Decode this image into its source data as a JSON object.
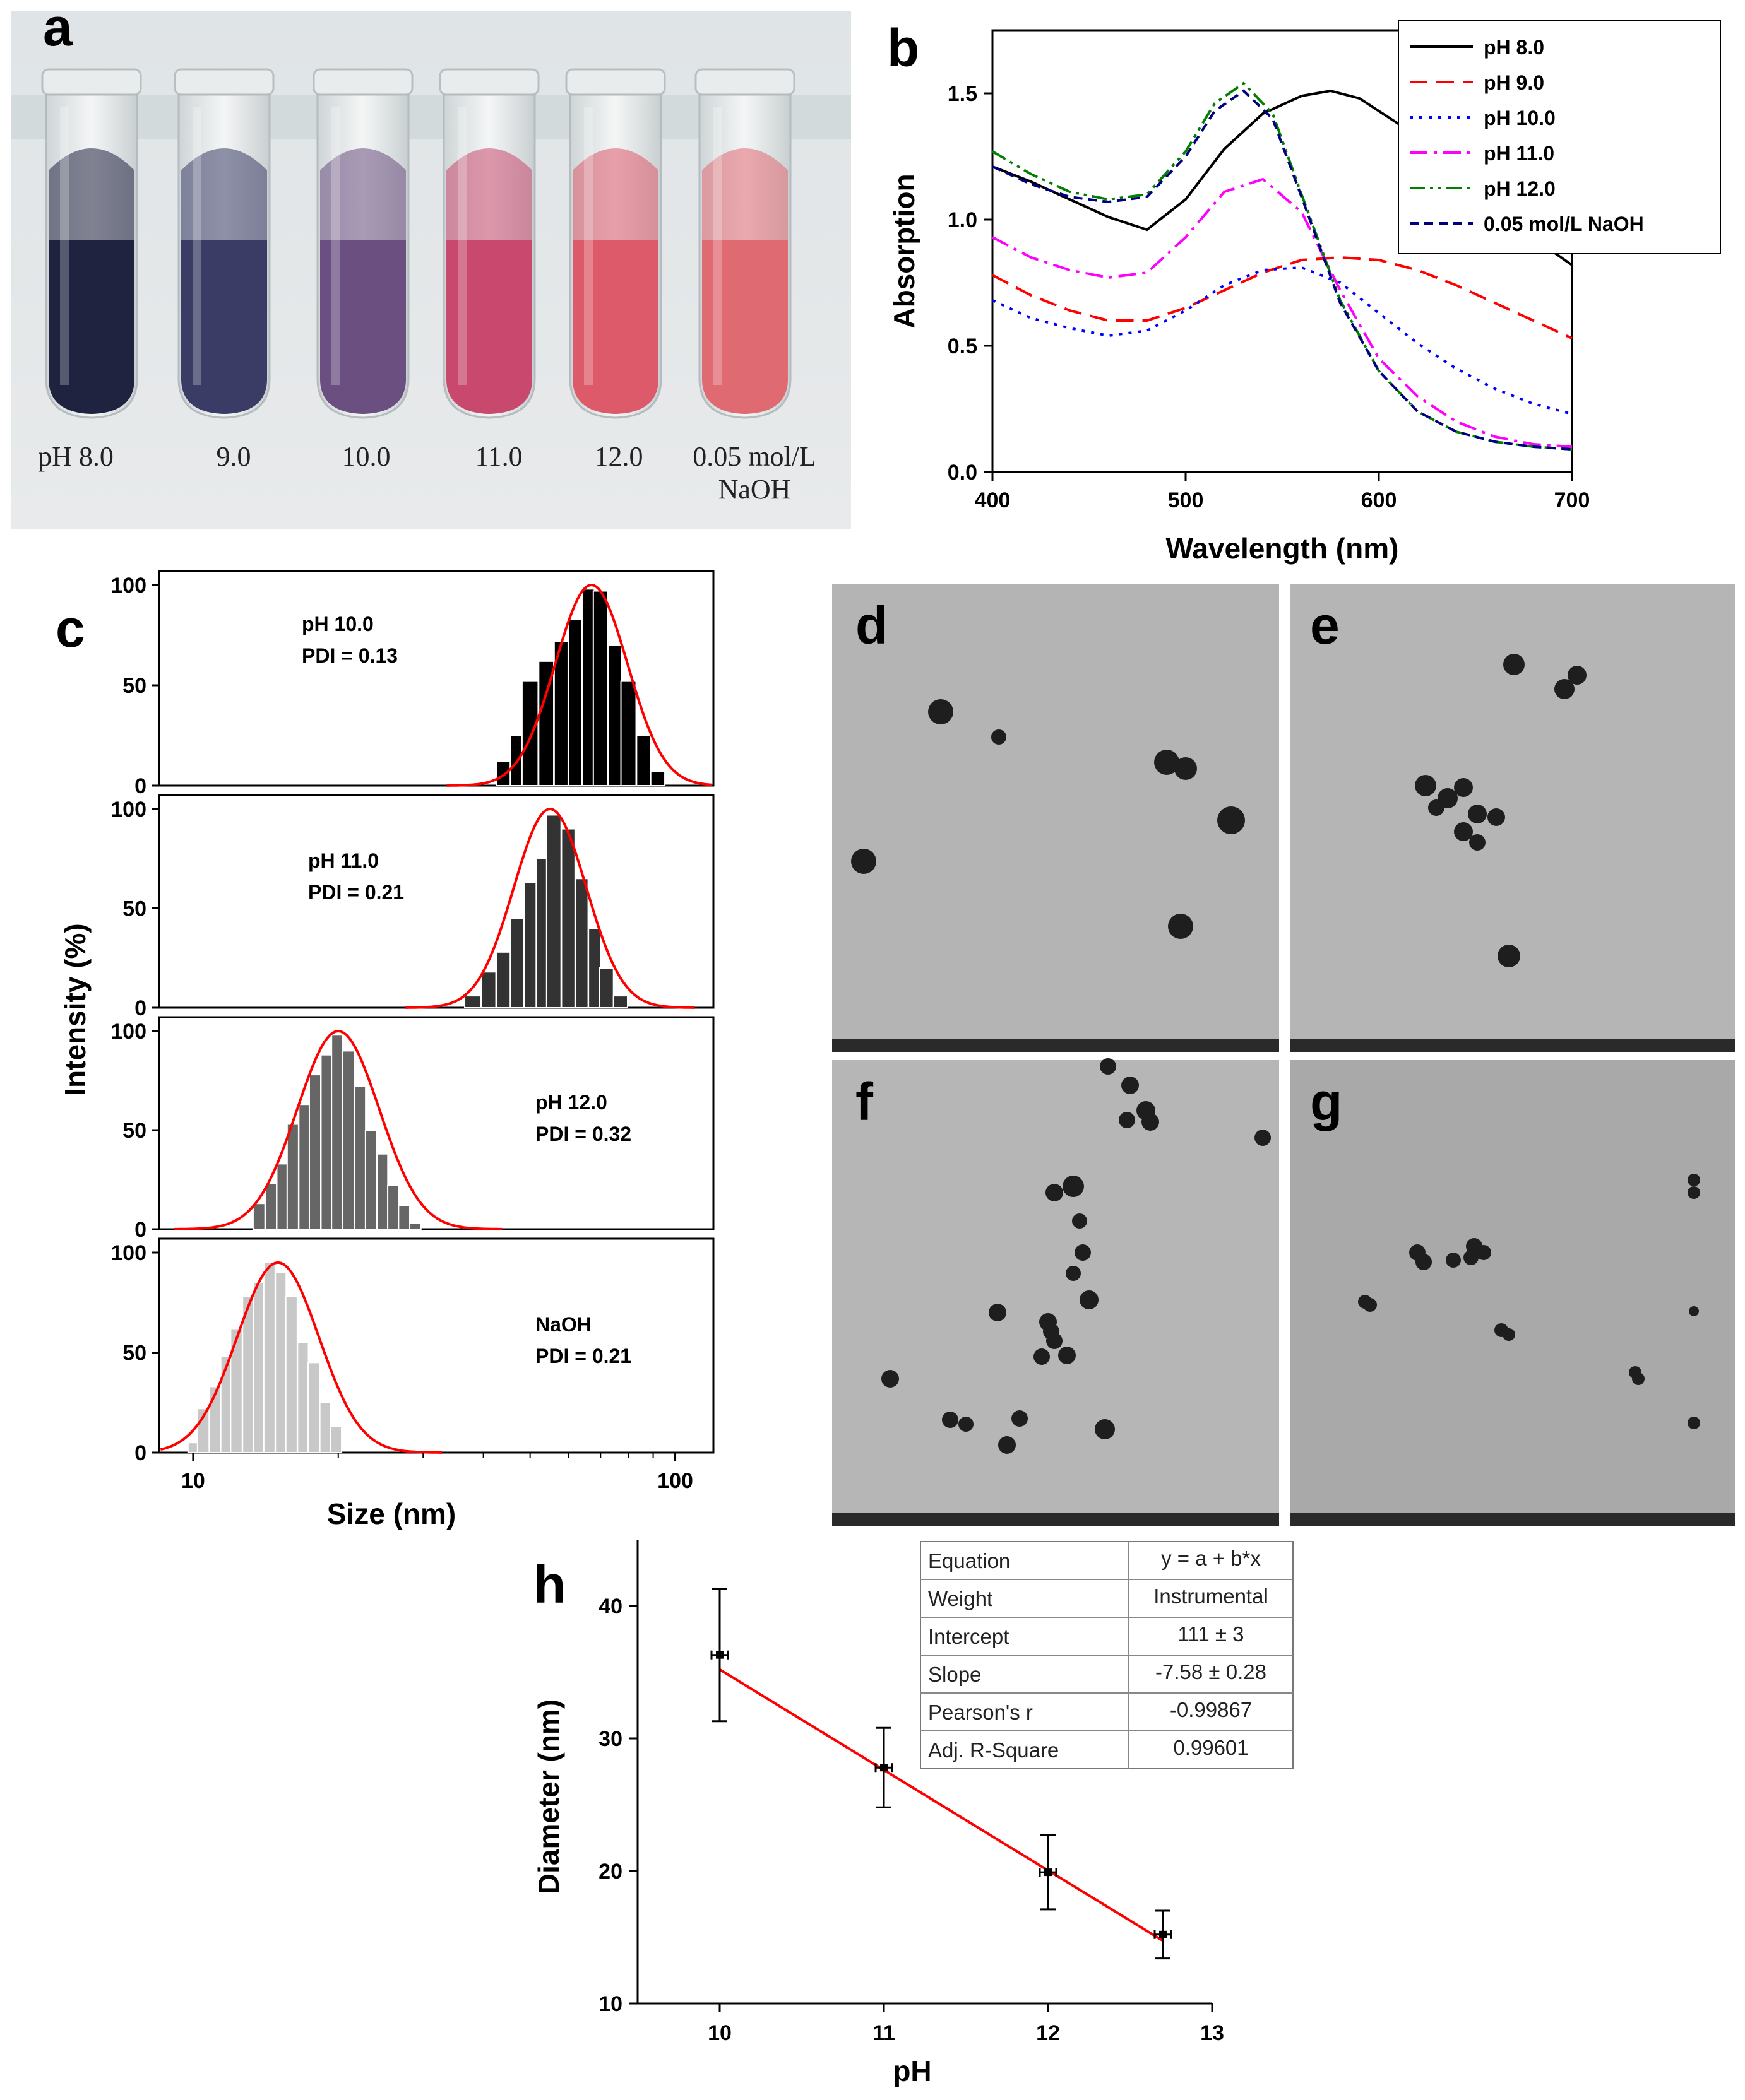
{
  "panels": {
    "a": "a",
    "b": "b",
    "c": "c",
    "d": "d",
    "e": "e",
    "f": "f",
    "g": "g",
    "h": "h"
  },
  "tubes": {
    "labels": [
      "pH   8.0",
      "9.0",
      "10.0",
      "11.0",
      "12.0",
      "0.05 mol/L"
    ],
    "label_line2": "NaOH",
    "colors": [
      "#20233f",
      "#3a3c66",
      "#6b4f80",
      "#c9486e",
      "#dd5a6a",
      "#e06a72"
    ]
  },
  "chart_data": [
    {
      "panel": "b",
      "type": "line",
      "xlabel": "Wavelength (nm)",
      "ylabel": "Absorption",
      "xlim": [
        400,
        700
      ],
      "ylim": [
        0.0,
        1.75
      ],
      "xticks": [
        "400",
        "500",
        "600",
        "700"
      ],
      "yticks": [
        "0.0",
        "0.5",
        "1.0",
        "1.5"
      ],
      "legend_position": "top-right",
      "series": [
        {
          "name": "pH 8.0",
          "color": "#000000",
          "dash": "solid",
          "x": [
            400,
            420,
            440,
            460,
            480,
            500,
            520,
            540,
            560,
            575,
            590,
            610,
            630,
            650,
            670,
            700
          ],
          "y": [
            1.21,
            1.15,
            1.08,
            1.01,
            0.96,
            1.08,
            1.28,
            1.42,
            1.49,
            1.51,
            1.48,
            1.38,
            1.25,
            1.11,
            0.98,
            0.82
          ]
        },
        {
          "name": "pH 9.0",
          "color": "#ff0000",
          "dash": "dashed",
          "x": [
            400,
            420,
            440,
            460,
            480,
            500,
            520,
            540,
            560,
            580,
            600,
            620,
            640,
            660,
            680,
            700
          ],
          "y": [
            0.78,
            0.7,
            0.64,
            0.6,
            0.6,
            0.65,
            0.72,
            0.79,
            0.84,
            0.85,
            0.84,
            0.8,
            0.74,
            0.67,
            0.6,
            0.53
          ]
        },
        {
          "name": "pH 10.0",
          "color": "#0000ff",
          "dash": "dotted",
          "x": [
            400,
            420,
            440,
            460,
            480,
            500,
            520,
            540,
            560,
            580,
            600,
            620,
            640,
            660,
            680,
            700
          ],
          "y": [
            0.68,
            0.61,
            0.57,
            0.54,
            0.56,
            0.64,
            0.74,
            0.8,
            0.81,
            0.75,
            0.63,
            0.51,
            0.41,
            0.33,
            0.27,
            0.23
          ]
        },
        {
          "name": "pH 11.0",
          "color": "#ff00ff",
          "dash": "dashdot",
          "x": [
            400,
            420,
            440,
            460,
            480,
            500,
            520,
            540,
            560,
            580,
            600,
            620,
            640,
            660,
            680,
            700
          ],
          "y": [
            0.93,
            0.85,
            0.8,
            0.77,
            0.79,
            0.93,
            1.11,
            1.16,
            1.03,
            0.72,
            0.45,
            0.3,
            0.2,
            0.14,
            0.11,
            0.1
          ]
        },
        {
          "name": "pH 12.0",
          "color": "#008000",
          "dash": "dashdotdot",
          "x": [
            400,
            420,
            440,
            460,
            480,
            500,
            515,
            530,
            545,
            560,
            580,
            600,
            620,
            640,
            660,
            680,
            700
          ],
          "y": [
            1.27,
            1.18,
            1.11,
            1.08,
            1.1,
            1.27,
            1.46,
            1.54,
            1.42,
            1.1,
            0.68,
            0.4,
            0.24,
            0.16,
            0.12,
            0.1,
            0.09
          ]
        },
        {
          "name": "0.05 mol/L NaOH",
          "color": "#000080",
          "dash": "shortdash",
          "x": [
            400,
            420,
            440,
            460,
            480,
            500,
            515,
            530,
            545,
            560,
            580,
            600,
            620,
            640,
            660,
            680,
            700
          ],
          "y": [
            1.21,
            1.14,
            1.09,
            1.07,
            1.09,
            1.25,
            1.43,
            1.51,
            1.4,
            1.09,
            0.67,
            0.4,
            0.24,
            0.16,
            0.12,
            0.1,
            0.09
          ]
        }
      ]
    },
    {
      "panel": "c",
      "type": "bar",
      "xlabel": "Size (nm)",
      "ylabel": "Intensity (%)",
      "xscale": "log",
      "xlim": [
        8.5,
        120
      ],
      "xticks": [
        "10",
        "100"
      ],
      "yticks": [
        "0",
        "50",
        "100"
      ],
      "subplots": [
        {
          "label": "pH 10.0",
          "pdi": "PDI = 0.13",
          "bar_color": "#000000",
          "x": [
            44,
            47,
            50,
            54,
            58,
            62,
            66,
            70,
            75,
            80,
            86,
            92
          ],
          "y": [
            12,
            25,
            52,
            62,
            72,
            83,
            98,
            97,
            70,
            52,
            25,
            7
          ],
          "fit_mu": 67,
          "fit_peak": 100
        },
        {
          "label": "pH 11.0",
          "pdi": "PDI = 0.21",
          "bar_color": "#333333",
          "x": [
            38,
            41,
            44,
            47,
            50,
            53,
            56,
            60,
            64,
            68,
            72,
            77
          ],
          "y": [
            6,
            18,
            28,
            45,
            63,
            75,
            97,
            90,
            65,
            40,
            20,
            6
          ],
          "fit_mu": 55,
          "fit_peak": 100
        },
        {
          "label": "pH 12.0",
          "pdi": "PDI = 0.32",
          "bar_color": "#666666",
          "x": [
            13.7,
            14.5,
            15.3,
            16.1,
            17.0,
            17.9,
            18.9,
            19.9,
            21.0,
            22.2,
            23.4,
            24.7,
            26.0,
            27.4,
            28.9
          ],
          "y": [
            13,
            23,
            33,
            53,
            63,
            78,
            88,
            98,
            90,
            72,
            50,
            38,
            22,
            12,
            3
          ],
          "fit_mu": 20,
          "fit_peak": 100
        },
        {
          "label": "NaOH",
          "pdi": "PDI = 0.21",
          "bar_color": "#c8c8c8",
          "x": [
            10.0,
            10.5,
            11.1,
            11.7,
            12.3,
            13.0,
            13.7,
            14.4,
            15.2,
            16.0,
            16.9,
            17.8,
            18.8,
            19.8
          ],
          "y": [
            5,
            22,
            33,
            48,
            62,
            78,
            85,
            95,
            90,
            78,
            55,
            45,
            25,
            13
          ],
          "fit_mu": 15,
          "fit_peak": 95
        }
      ]
    },
    {
      "panel": "h",
      "type": "scatter",
      "xlabel": "pH",
      "ylabel": "Diameter (nm)",
      "xlim": [
        9.5,
        13
      ],
      "ylim": [
        10,
        45
      ],
      "xticks": [
        "10",
        "11",
        "12",
        "13"
      ],
      "yticks": [
        "10",
        "20",
        "30",
        "40"
      ],
      "points": [
        {
          "x": 10.0,
          "y": 36.3,
          "yerr": 5.0,
          "xerr": 0.05
        },
        {
          "x": 11.0,
          "y": 27.8,
          "yerr": 3.0,
          "xerr": 0.05
        },
        {
          "x": 12.0,
          "y": 19.9,
          "yerr": 2.8,
          "xerr": 0.05
        },
        {
          "x": 12.7,
          "y": 15.2,
          "yerr": 1.8,
          "xerr": 0.05
        }
      ],
      "fit": {
        "intercept": 111,
        "slope": -7.58
      },
      "fit_table": [
        [
          "Equation",
          "y = a + b*x"
        ],
        [
          "Weight",
          "Instrumental"
        ],
        [
          "Intercept",
          "111 ± 3"
        ],
        [
          "Slope",
          "-7.58 ± 0.28"
        ],
        [
          "Pearson's r",
          "-0.99867"
        ],
        [
          "Adj. R-Square",
          "0.99601"
        ]
      ]
    }
  ]
}
